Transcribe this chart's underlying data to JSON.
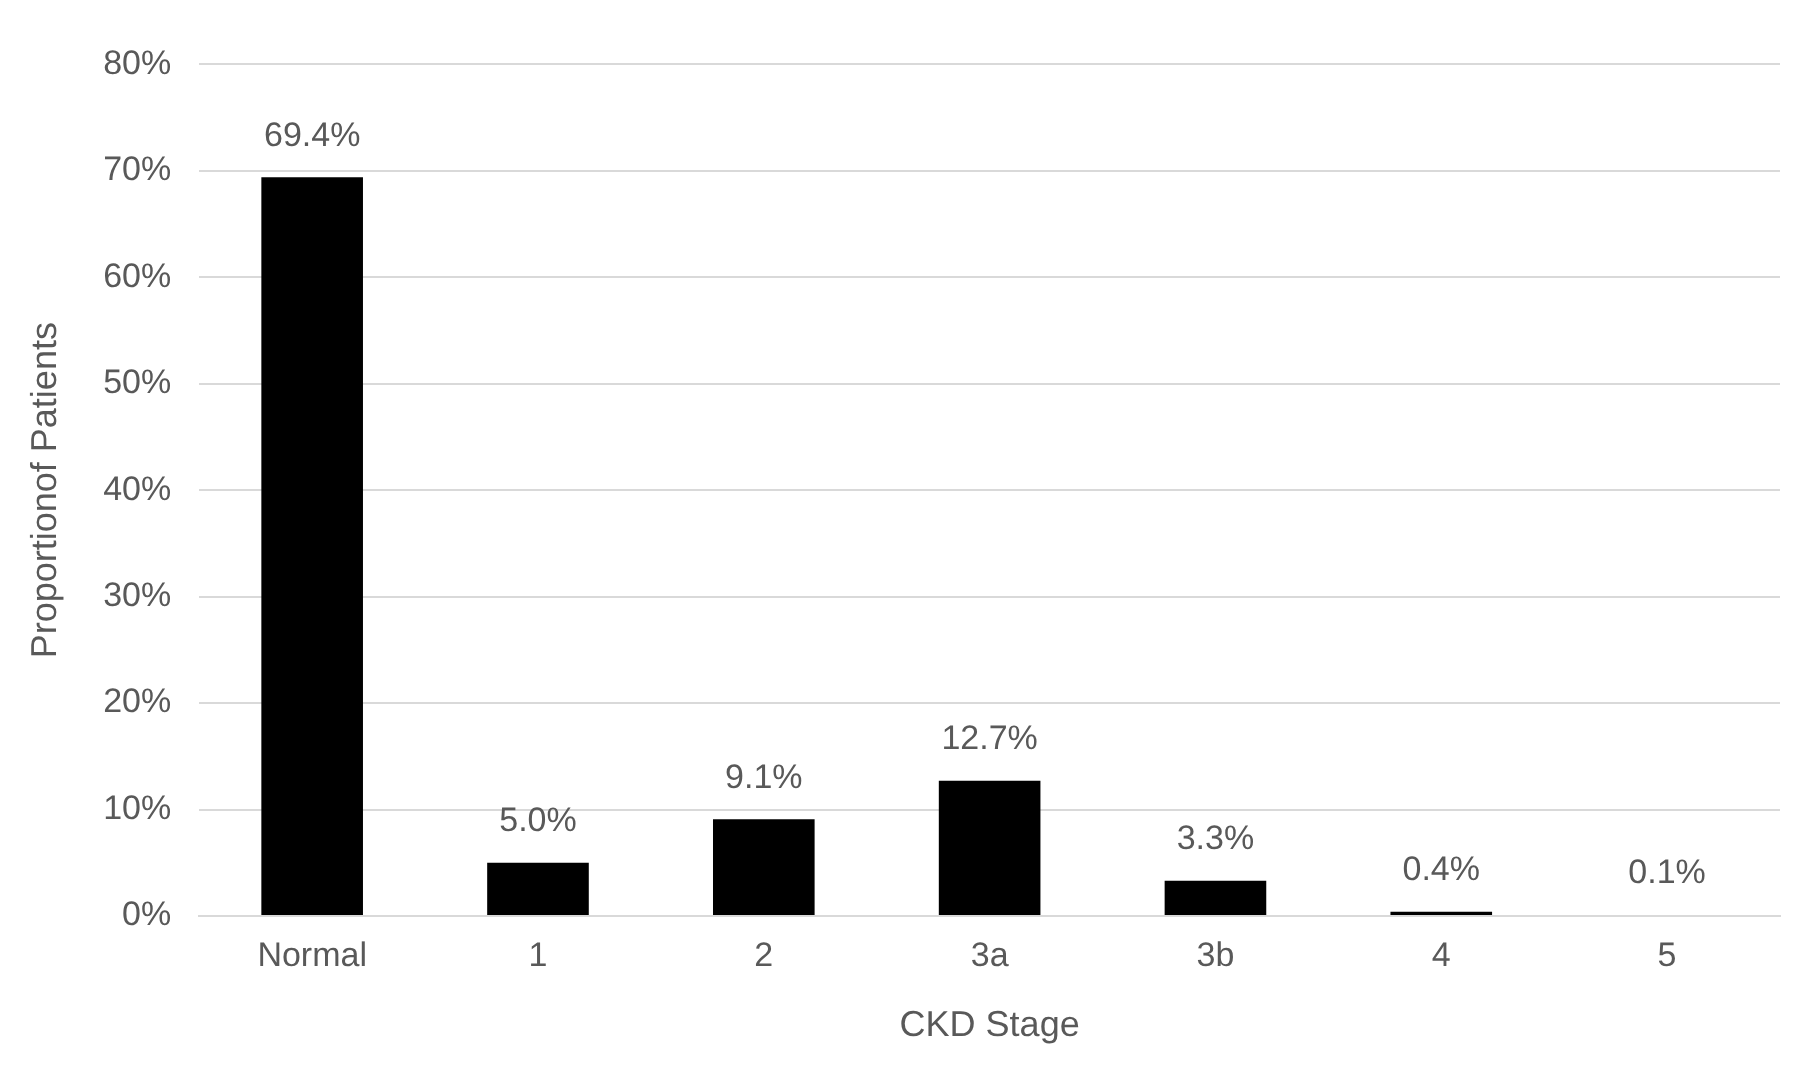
{
  "chart_data": {
    "type": "bar",
    "xlabel": "CKD Stage",
    "ylabel": "Proportionof Patients",
    "categories": [
      "Normal",
      "1",
      "2",
      "3a",
      "3b",
      "4",
      "5"
    ],
    "values": [
      69.4,
      5.0,
      9.1,
      12.7,
      3.3,
      0.4,
      0.1
    ],
    "value_labels": [
      "69.4%",
      "5.0%",
      "9.1%",
      "12.7%",
      "3.3%",
      "0.4%",
      "0.1%"
    ],
    "color": "#000000",
    "ylim": [
      0,
      80
    ],
    "yticks": [
      {
        "value": 0,
        "label": "0%"
      },
      {
        "value": 10,
        "label": "10%"
      },
      {
        "value": 20,
        "label": "20%"
      },
      {
        "value": 30,
        "label": "30%"
      },
      {
        "value": 40,
        "label": "40%"
      },
      {
        "value": 50,
        "label": "50%"
      },
      {
        "value": 60,
        "label": "60%"
      },
      {
        "value": 70,
        "label": "70%"
      },
      {
        "value": 80,
        "label": "80%"
      }
    ],
    "grid": "y",
    "legend": false
  }
}
